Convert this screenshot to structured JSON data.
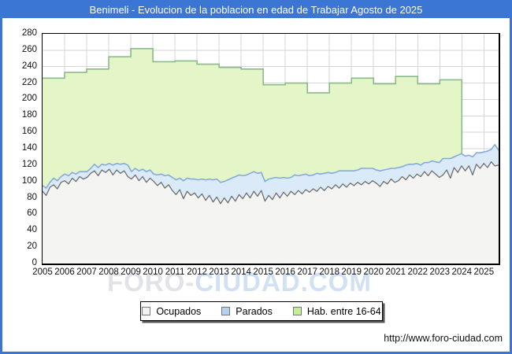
{
  "title": "Benimeli - Evolucion de la poblacion en edad de Trabajar Agosto de 2025",
  "watermark": {
    "part1": "FORO-",
    "part2": "CIUDAD.COM"
  },
  "footer_url": "http://www.foro-ciudad.com",
  "colors": {
    "frame_blue": "#3c76d5",
    "grid": "#d6d6d6",
    "ocupados_fill": "#f4f4f2",
    "ocupados_stroke": "#6f6f6f",
    "parados_fill": "#daeaf8",
    "parados_stroke": "#84abdb",
    "hab_fill": "#e4f5c7",
    "hab_stroke": "#8aba8a"
  },
  "chart_data": {
    "type": "area",
    "title": "Benimeli - Evolucion de la poblacion en edad de Trabajar Agosto de 2025",
    "xlabel": "",
    "ylabel": "",
    "ylim": [
      0,
      280
    ],
    "ytick_step": 20,
    "y_tick_labels": [
      "0",
      "20",
      "40",
      "60",
      "80",
      "100",
      "120",
      "140",
      "160",
      "180",
      "200",
      "220",
      "240",
      "260",
      "280"
    ],
    "x_tick_labels": [
      "2005",
      "2006",
      "2007",
      "2008",
      "2009",
      "2010",
      "2011",
      "2012",
      "2013",
      "2014",
      "2015",
      "2016",
      "2017",
      "2018",
      "2019",
      "2020",
      "2021",
      "2022",
      "2023",
      "2024",
      "2025"
    ],
    "x_span_years": 20.6667,
    "grid": true,
    "legend_position": "bottom",
    "series": [
      {
        "name": "Ocupados",
        "mode": "poly",
        "points_per_year": 6,
        "fill": "#f4f4f2",
        "stroke": "#6f6f6f",
        "stroke_width": 1.3,
        "legend_color": "#f2f2f2",
        "values": [
          88,
          83,
          93,
          96,
          91,
          99,
          101,
          97,
          104,
          100,
          106,
          103,
          105,
          110,
          113,
          107,
          114,
          111,
          115,
          108,
          114,
          110,
          113,
          106,
          103,
          108,
          101,
          106,
          99,
          104,
          100,
          95,
          99,
          92,
          96,
          89,
          84,
          90,
          79,
          88,
          83,
          86,
          80,
          85,
          77,
          83,
          75,
          81,
          73,
          80,
          74,
          82,
          76,
          84,
          79,
          86,
          80,
          88,
          82,
          89,
          76,
          83,
          78,
          86,
          80,
          87,
          82,
          88,
          84,
          89,
          85,
          90,
          87,
          91,
          88,
          93,
          89,
          94,
          91,
          96,
          92,
          97,
          93,
          98,
          95,
          99,
          96,
          100,
          97,
          101,
          98,
          94,
          100,
          97,
          103,
          99,
          101,
          106,
          102,
          108,
          104,
          109,
          106,
          112,
          107,
          113,
          109,
          105,
          108,
          114,
          104,
          117,
          111,
          119,
          113,
          119,
          108,
          121,
          116,
          122,
          117,
          124,
          119,
          120
        ]
      },
      {
        "name": "Parados",
        "mode": "poly_stacked_on_previous",
        "points_per_year": 6,
        "fill": "#daeaf8",
        "stroke": "#84abdb",
        "stroke_width": 1.6,
        "legend_color": "#b5d1ee",
        "values": [
          7,
          9,
          6,
          8,
          10,
          7,
          8,
          10,
          7,
          9,
          6,
          9,
          7,
          6,
          8,
          10,
          7,
          9,
          7,
          12,
          8,
          11,
          9,
          14,
          9,
          8,
          12,
          9,
          13,
          10,
          9,
          13,
          10,
          15,
          12,
          16,
          18,
          14,
          22,
          16,
          20,
          17,
          22,
          18,
          25,
          20,
          27,
          22,
          26,
          20,
          28,
          22,
          30,
          24,
          28,
          22,
          30,
          24,
          28,
          22,
          24,
          20,
          26,
          19,
          24,
          18,
          22,
          17,
          24,
          18,
          23,
          19,
          20,
          17,
          22,
          16,
          21,
          17,
          19,
          15,
          21,
          16,
          20,
          15,
          18,
          15,
          20,
          16,
          19,
          15,
          16,
          19,
          14,
          18,
          13,
          17,
          16,
          12,
          18,
          13,
          17,
          13,
          14,
          11,
          16,
          12,
          15,
          18,
          20,
          14,
          24,
          13,
          21,
          15,
          18,
          13,
          22,
          14,
          19,
          14,
          20,
          15,
          26,
          18
        ]
      },
      {
        "name": "Hab. entre 16-64",
        "mode": "yearly_step",
        "start_year_offset": 0,
        "fill": "#e4f5c7",
        "stroke": "#8aba8a",
        "stroke_width": 1.6,
        "legend_color": "#c3ee98",
        "years": [
          2005,
          2006,
          2007,
          2008,
          2009,
          2010,
          2011,
          2012,
          2013,
          2014,
          2015,
          2016,
          2017,
          2018,
          2019,
          2020,
          2021,
          2022,
          2023
        ],
        "values": [
          226,
          233,
          237,
          252,
          262,
          246,
          247,
          243,
          239,
          237,
          218,
          220,
          208,
          220,
          226,
          219,
          228,
          219,
          224
        ]
      }
    ]
  }
}
